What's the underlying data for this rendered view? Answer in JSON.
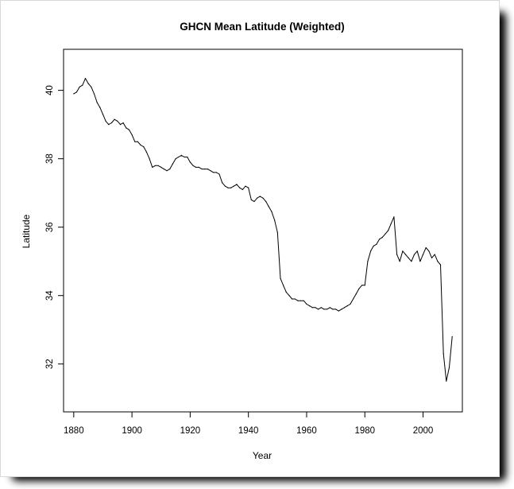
{
  "chart_data": {
    "type": "line",
    "title": "GHCN Mean Latitude (Weighted)",
    "xlabel": "Year",
    "ylabel": "Latitude",
    "xlim": [
      1876.5,
      2013.5
    ],
    "ylim": [
      30.6,
      41.2
    ],
    "x_ticks": [
      "1880",
      "1900",
      "1920",
      "1940",
      "1960",
      "1980",
      "2000"
    ],
    "y_ticks": [
      "32",
      "34",
      "36",
      "38",
      "40"
    ],
    "grid": false,
    "legend": "none",
    "line_color": "#000000",
    "series": [
      {
        "points": [
          [
            1880,
            39.9
          ],
          [
            1881,
            39.95
          ],
          [
            1882,
            40.1
          ],
          [
            1883,
            40.15
          ],
          [
            1884,
            40.35
          ],
          [
            1885,
            40.2
          ],
          [
            1886,
            40.1
          ],
          [
            1887,
            39.9
          ],
          [
            1888,
            39.65
          ],
          [
            1889,
            39.5
          ],
          [
            1890,
            39.3
          ],
          [
            1891,
            39.1
          ],
          [
            1892,
            39.0
          ],
          [
            1893,
            39.05
          ],
          [
            1894,
            39.15
          ],
          [
            1895,
            39.1
          ],
          [
            1896,
            39.0
          ],
          [
            1897,
            39.05
          ],
          [
            1898,
            38.9
          ],
          [
            1899,
            38.85
          ],
          [
            1900,
            38.7
          ],
          [
            1901,
            38.5
          ],
          [
            1902,
            38.5
          ],
          [
            1903,
            38.4
          ],
          [
            1904,
            38.35
          ],
          [
            1905,
            38.2
          ],
          [
            1906,
            38.0
          ],
          [
            1907,
            37.75
          ],
          [
            1908,
            37.8
          ],
          [
            1909,
            37.8
          ],
          [
            1910,
            37.75
          ],
          [
            1911,
            37.7
          ],
          [
            1912,
            37.65
          ],
          [
            1913,
            37.7
          ],
          [
            1914,
            37.85
          ],
          [
            1915,
            38.0
          ],
          [
            1916,
            38.05
          ],
          [
            1917,
            38.1
          ],
          [
            1918,
            38.05
          ],
          [
            1919,
            38.05
          ],
          [
            1920,
            37.9
          ],
          [
            1921,
            37.8
          ],
          [
            1922,
            37.75
          ],
          [
            1923,
            37.75
          ],
          [
            1924,
            37.7
          ],
          [
            1925,
            37.7
          ],
          [
            1926,
            37.7
          ],
          [
            1927,
            37.65
          ],
          [
            1928,
            37.6
          ],
          [
            1929,
            37.6
          ],
          [
            1930,
            37.55
          ],
          [
            1931,
            37.3
          ],
          [
            1932,
            37.2
          ],
          [
            1933,
            37.15
          ],
          [
            1934,
            37.15
          ],
          [
            1935,
            37.2
          ],
          [
            1936,
            37.25
          ],
          [
            1937,
            37.15
          ],
          [
            1938,
            37.1
          ],
          [
            1939,
            37.2
          ],
          [
            1940,
            37.15
          ],
          [
            1941,
            36.8
          ],
          [
            1942,
            36.75
          ],
          [
            1943,
            36.85
          ],
          [
            1944,
            36.9
          ],
          [
            1945,
            36.85
          ],
          [
            1946,
            36.75
          ],
          [
            1947,
            36.6
          ],
          [
            1948,
            36.45
          ],
          [
            1949,
            36.2
          ],
          [
            1950,
            35.85
          ],
          [
            1951,
            34.5
          ],
          [
            1952,
            34.3
          ],
          [
            1953,
            34.1
          ],
          [
            1954,
            34.0
          ],
          [
            1955,
            33.9
          ],
          [
            1956,
            33.9
          ],
          [
            1957,
            33.85
          ],
          [
            1958,
            33.85
          ],
          [
            1959,
            33.85
          ],
          [
            1960,
            33.75
          ],
          [
            1961,
            33.7
          ],
          [
            1962,
            33.65
          ],
          [
            1963,
            33.65
          ],
          [
            1964,
            33.6
          ],
          [
            1965,
            33.65
          ],
          [
            1966,
            33.6
          ],
          [
            1967,
            33.6
          ],
          [
            1968,
            33.65
          ],
          [
            1969,
            33.6
          ],
          [
            1970,
            33.6
          ],
          [
            1971,
            33.55
          ],
          [
            1972,
            33.6
          ],
          [
            1973,
            33.65
          ],
          [
            1974,
            33.7
          ],
          [
            1975,
            33.75
          ],
          [
            1976,
            33.9
          ],
          [
            1977,
            34.05
          ],
          [
            1978,
            34.2
          ],
          [
            1979,
            34.3
          ],
          [
            1980,
            34.3
          ],
          [
            1981,
            35.0
          ],
          [
            1982,
            35.3
          ],
          [
            1983,
            35.45
          ],
          [
            1984,
            35.5
          ],
          [
            1985,
            35.65
          ],
          [
            1986,
            35.7
          ],
          [
            1987,
            35.8
          ],
          [
            1988,
            35.9
          ],
          [
            1989,
            36.1
          ],
          [
            1990,
            36.3
          ],
          [
            1991,
            35.2
          ],
          [
            1992,
            35.0
          ],
          [
            1993,
            35.3
          ],
          [
            1994,
            35.2
          ],
          [
            1995,
            35.1
          ],
          [
            1996,
            35.0
          ],
          [
            1997,
            35.2
          ],
          [
            1998,
            35.3
          ],
          [
            1999,
            35.0
          ],
          [
            2000,
            35.2
          ],
          [
            2001,
            35.4
          ],
          [
            2002,
            35.3
          ],
          [
            2003,
            35.1
          ],
          [
            2004,
            35.2
          ],
          [
            2005,
            35.0
          ],
          [
            2006,
            34.9
          ],
          [
            2007,
            32.3
          ],
          [
            2008,
            31.5
          ],
          [
            2009,
            31.9
          ],
          [
            2010,
            32.8
          ]
        ]
      }
    ]
  }
}
